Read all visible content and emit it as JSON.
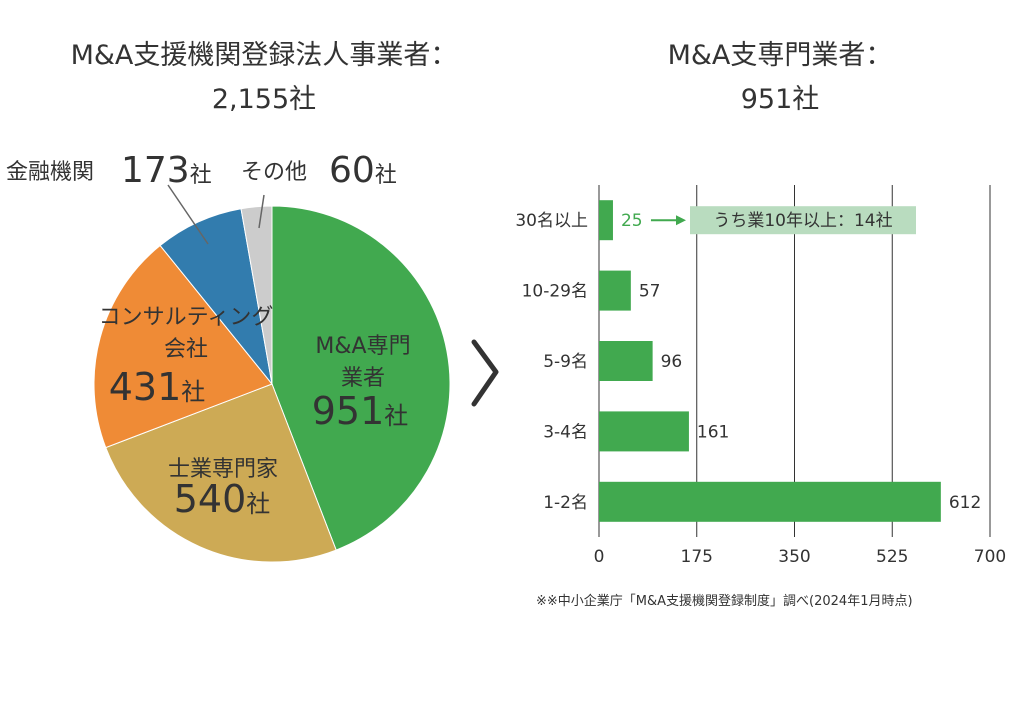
{
  "left_title": {
    "line1": "M&A支援機関登録法人事業者：",
    "line2": "2,155社"
  },
  "right_title": {
    "line1": "M&A支専門業者：",
    "line2": "951社"
  },
  "unit": "社",
  "footnote": "※※中小企業庁「M&A支援機関登録制度」調べ(2024年1月時点)",
  "colors": {
    "green": "#41a94f",
    "tan": "#cdaa55",
    "orange": "#ef8b36",
    "blue": "#327cae",
    "gray": "#cccccc",
    "callout_bg": "#b9dcbf"
  },
  "chart_data": [
    {
      "type": "pie",
      "slices": [
        {
          "label_lines": [
            "M&A専門",
            "業者"
          ],
          "value": 951,
          "value_text": "951",
          "color": "#41a94f"
        },
        {
          "label_lines": [
            "士業専門家"
          ],
          "value": 540,
          "value_text": "540",
          "color": "#cdaa55"
        },
        {
          "label_lines": [
            "コンサルティング",
            "会社"
          ],
          "value": 431,
          "value_text": "431",
          "color": "#ef8b36"
        },
        {
          "label_lines": [
            "金融機関"
          ],
          "value": 173,
          "value_text": "173",
          "color": "#327cae"
        },
        {
          "label_lines": [
            "その他"
          ],
          "value": 60,
          "value_text": "60",
          "color": "#cccccc"
        }
      ],
      "total": 2155
    },
    {
      "type": "bar",
      "orientation": "horizontal",
      "categories": [
        "30名以上",
        "10-29名",
        "5-9名",
        "3-4名",
        "1-2名"
      ],
      "values": [
        25,
        57,
        96,
        161,
        612
      ],
      "xlim": [
        0,
        700
      ],
      "xticks": [
        0,
        175,
        350,
        525,
        700
      ],
      "grid": true,
      "color": "#41a94f",
      "annotation": {
        "category": "30名以上",
        "text": "うち業10年以上：14社"
      }
    }
  ]
}
